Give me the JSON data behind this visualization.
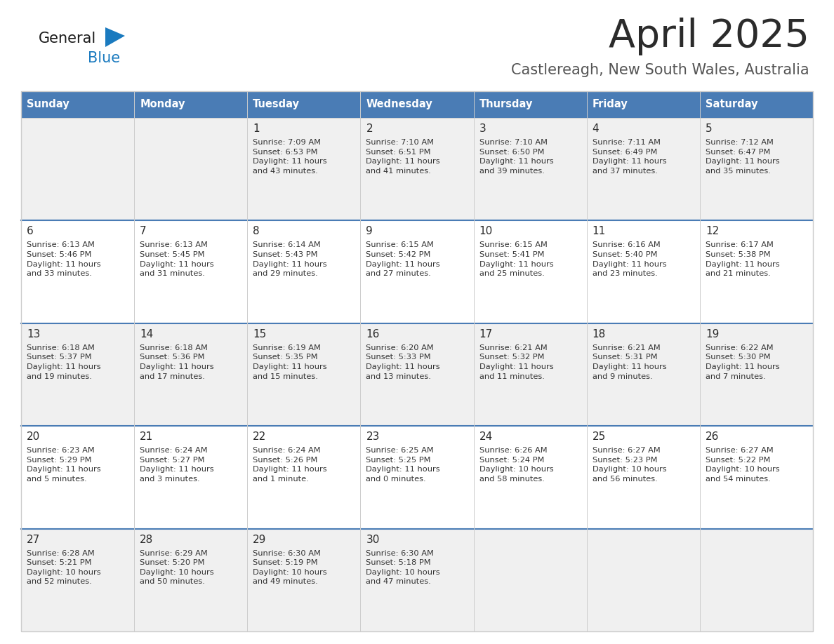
{
  "title": "April 2025",
  "subtitle": "Castlereagh, New South Wales, Australia",
  "header_bg": "#4a7cb5",
  "header_text_color": "#ffffff",
  "cell_bg_light": "#f0f0f0",
  "cell_bg_white": "#ffffff",
  "day_headers": [
    "Sunday",
    "Monday",
    "Tuesday",
    "Wednesday",
    "Thursday",
    "Friday",
    "Saturday"
  ],
  "title_color": "#2b2b2b",
  "subtitle_color": "#555555",
  "day_number_color": "#2b2b2b",
  "cell_text_color": "#333333",
  "divider_color": "#4a7cb5",
  "border_color": "#cccccc",
  "logo_general_color": "#1a1a1a",
  "logo_blue_color": "#1a7abf",
  "calendar_data": [
    [
      "",
      "",
      "1\nSunrise: 7:09 AM\nSunset: 6:53 PM\nDaylight: 11 hours\nand 43 minutes.",
      "2\nSunrise: 7:10 AM\nSunset: 6:51 PM\nDaylight: 11 hours\nand 41 minutes.",
      "3\nSunrise: 7:10 AM\nSunset: 6:50 PM\nDaylight: 11 hours\nand 39 minutes.",
      "4\nSunrise: 7:11 AM\nSunset: 6:49 PM\nDaylight: 11 hours\nand 37 minutes.",
      "5\nSunrise: 7:12 AM\nSunset: 6:47 PM\nDaylight: 11 hours\nand 35 minutes."
    ],
    [
      "6\nSunrise: 6:13 AM\nSunset: 5:46 PM\nDaylight: 11 hours\nand 33 minutes.",
      "7\nSunrise: 6:13 AM\nSunset: 5:45 PM\nDaylight: 11 hours\nand 31 minutes.",
      "8\nSunrise: 6:14 AM\nSunset: 5:43 PM\nDaylight: 11 hours\nand 29 minutes.",
      "9\nSunrise: 6:15 AM\nSunset: 5:42 PM\nDaylight: 11 hours\nand 27 minutes.",
      "10\nSunrise: 6:15 AM\nSunset: 5:41 PM\nDaylight: 11 hours\nand 25 minutes.",
      "11\nSunrise: 6:16 AM\nSunset: 5:40 PM\nDaylight: 11 hours\nand 23 minutes.",
      "12\nSunrise: 6:17 AM\nSunset: 5:38 PM\nDaylight: 11 hours\nand 21 minutes."
    ],
    [
      "13\nSunrise: 6:18 AM\nSunset: 5:37 PM\nDaylight: 11 hours\nand 19 minutes.",
      "14\nSunrise: 6:18 AM\nSunset: 5:36 PM\nDaylight: 11 hours\nand 17 minutes.",
      "15\nSunrise: 6:19 AM\nSunset: 5:35 PM\nDaylight: 11 hours\nand 15 minutes.",
      "16\nSunrise: 6:20 AM\nSunset: 5:33 PM\nDaylight: 11 hours\nand 13 minutes.",
      "17\nSunrise: 6:21 AM\nSunset: 5:32 PM\nDaylight: 11 hours\nand 11 minutes.",
      "18\nSunrise: 6:21 AM\nSunset: 5:31 PM\nDaylight: 11 hours\nand 9 minutes.",
      "19\nSunrise: 6:22 AM\nSunset: 5:30 PM\nDaylight: 11 hours\nand 7 minutes."
    ],
    [
      "20\nSunrise: 6:23 AM\nSunset: 5:29 PM\nDaylight: 11 hours\nand 5 minutes.",
      "21\nSunrise: 6:24 AM\nSunset: 5:27 PM\nDaylight: 11 hours\nand 3 minutes.",
      "22\nSunrise: 6:24 AM\nSunset: 5:26 PM\nDaylight: 11 hours\nand 1 minute.",
      "23\nSunrise: 6:25 AM\nSunset: 5:25 PM\nDaylight: 11 hours\nand 0 minutes.",
      "24\nSunrise: 6:26 AM\nSunset: 5:24 PM\nDaylight: 10 hours\nand 58 minutes.",
      "25\nSunrise: 6:27 AM\nSunset: 5:23 PM\nDaylight: 10 hours\nand 56 minutes.",
      "26\nSunrise: 6:27 AM\nSunset: 5:22 PM\nDaylight: 10 hours\nand 54 minutes."
    ],
    [
      "27\nSunrise: 6:28 AM\nSunset: 5:21 PM\nDaylight: 10 hours\nand 52 minutes.",
      "28\nSunrise: 6:29 AM\nSunset: 5:20 PM\nDaylight: 10 hours\nand 50 minutes.",
      "29\nSunrise: 6:30 AM\nSunset: 5:19 PM\nDaylight: 10 hours\nand 49 minutes.",
      "30\nSunrise: 6:30 AM\nSunset: 5:18 PM\nDaylight: 10 hours\nand 47 minutes.",
      "",
      "",
      ""
    ]
  ]
}
